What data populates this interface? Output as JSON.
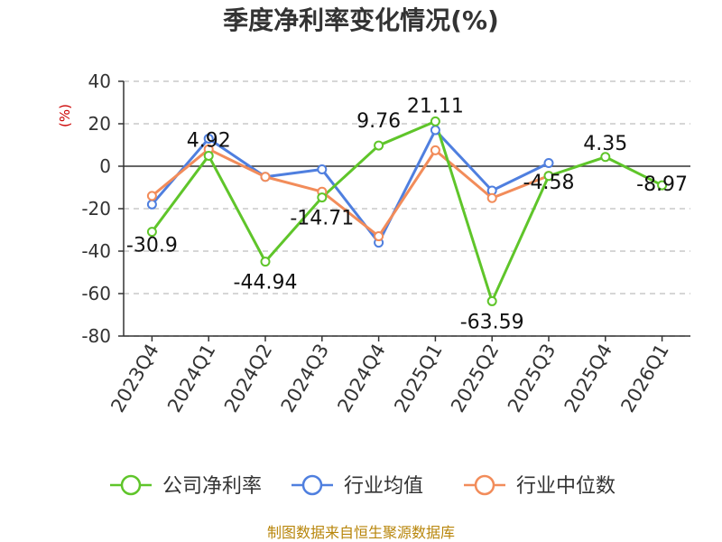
{
  "chart_data": {
    "type": "line",
    "title": "季度净利率变化情况(%)",
    "unit_label": "(%)",
    "categories": [
      "2023Q4",
      "2024Q1",
      "2024Q2",
      "2024Q3",
      "2024Q4",
      "2025Q1",
      "2025Q2",
      "2025Q3",
      "2025Q4",
      "2026Q1"
    ],
    "y_ticks": [
      40,
      20,
      0,
      -20,
      -40,
      -60,
      -80
    ],
    "ylim": [
      -80,
      40
    ],
    "grid": true,
    "legend_position": "bottom",
    "series": [
      {
        "name": "公司净利率",
        "color": "#5fc52a",
        "values": [
          -30.9,
          4.92,
          -44.94,
          -14.71,
          9.76,
          21.11,
          -63.59,
          -4.58,
          4.35,
          -8.97
        ],
        "labels": [
          "-30.9",
          "4.92",
          "-44.94",
          "-14.71",
          "9.76",
          "21.11",
          "-63.59",
          "-4.58",
          "4.35",
          "-8.97"
        ]
      },
      {
        "name": "行业均值",
        "color": "#4f7fdf",
        "values": [
          -18,
          13,
          -5,
          -1.5,
          -36,
          17,
          -11.5,
          1.5,
          null,
          null
        ]
      },
      {
        "name": "行业中位数",
        "color": "#f28c5a",
        "values": [
          -14,
          8,
          -5,
          -12,
          -33,
          7.5,
          -15,
          -4.5,
          null,
          null
        ]
      }
    ]
  },
  "source_text": "制图数据来自恒生聚源数据库"
}
